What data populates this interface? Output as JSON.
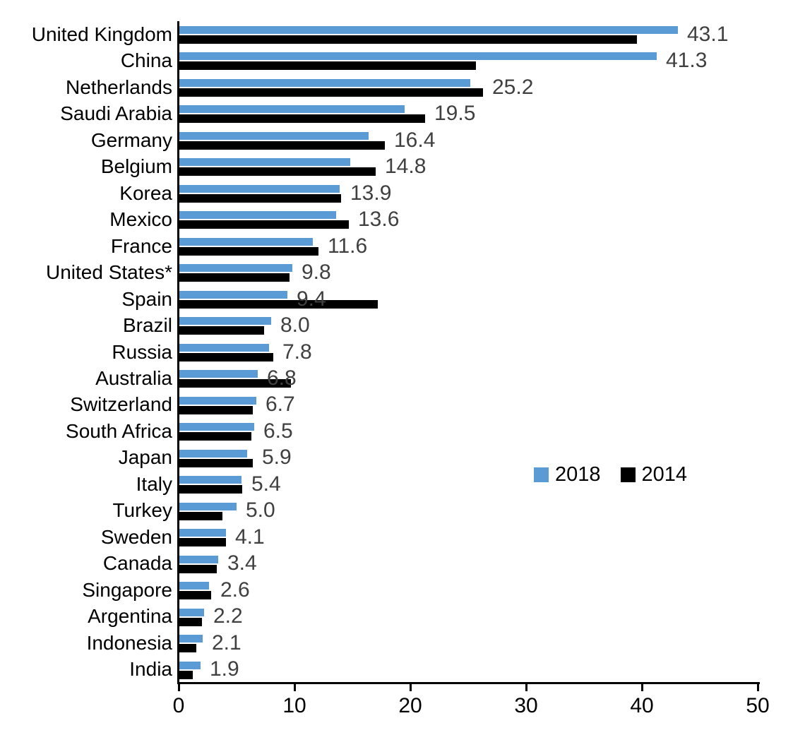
{
  "chart_data": {
    "type": "bar",
    "orientation": "horizontal",
    "title": "",
    "xlabel": "",
    "ylabel": "",
    "xlim": [
      0,
      50
    ],
    "xticks": [
      "0",
      "10",
      "20",
      "30",
      "40",
      "50"
    ],
    "grid": false,
    "legend_position": "middle-right",
    "categories": [
      "United Kingdom",
      "China",
      "Netherlands",
      "Saudi Arabia",
      "Germany",
      "Belgium",
      "Korea",
      "Mexico",
      "France",
      "United States*",
      "Spain",
      "Brazil",
      "Russia",
      "Australia",
      "Switzerland",
      "South Africa",
      "Japan",
      "Italy",
      "Turkey",
      "Sweden",
      "Canada",
      "Singapore",
      "Argentina",
      "Indonesia",
      "India"
    ],
    "series": [
      {
        "name": "2018",
        "color": "#5B9BD5",
        "values": [
          43.1,
          41.3,
          25.2,
          19.5,
          16.4,
          14.8,
          13.9,
          13.6,
          11.6,
          9.8,
          9.4,
          8.0,
          7.8,
          6.8,
          6.7,
          6.5,
          5.9,
          5.4,
          5.0,
          4.1,
          3.4,
          2.6,
          2.2,
          2.1,
          1.9
        ],
        "labels": [
          "43.1",
          "41.3",
          "25.2",
          "19.5",
          "16.4",
          "14.8",
          "13.9",
          "13.6",
          "11.6",
          "9.8",
          "9.4",
          "8.0",
          "7.8",
          "6.8",
          "6.7",
          "6.5",
          "5.9",
          "5.4",
          "5.0",
          "4.1",
          "3.4",
          "2.6",
          "2.2",
          "2.1",
          "1.9"
        ],
        "labels_shown": true
      },
      {
        "name": "2014",
        "color": "#000000",
        "values": [
          39.6,
          25.7,
          26.3,
          21.3,
          17.8,
          17.0,
          14.0,
          14.7,
          12.1,
          9.6,
          17.2,
          7.4,
          8.2,
          9.7,
          6.4,
          6.3,
          6.4,
          5.5,
          3.8,
          4.1,
          3.3,
          2.8,
          2.0,
          1.5,
          1.2
        ],
        "labels_shown": false
      }
    ],
    "colors": {
      "value_label": "#404040",
      "axis": "#000000",
      "tick_label": "#000000",
      "category_label": "#000000"
    }
  }
}
